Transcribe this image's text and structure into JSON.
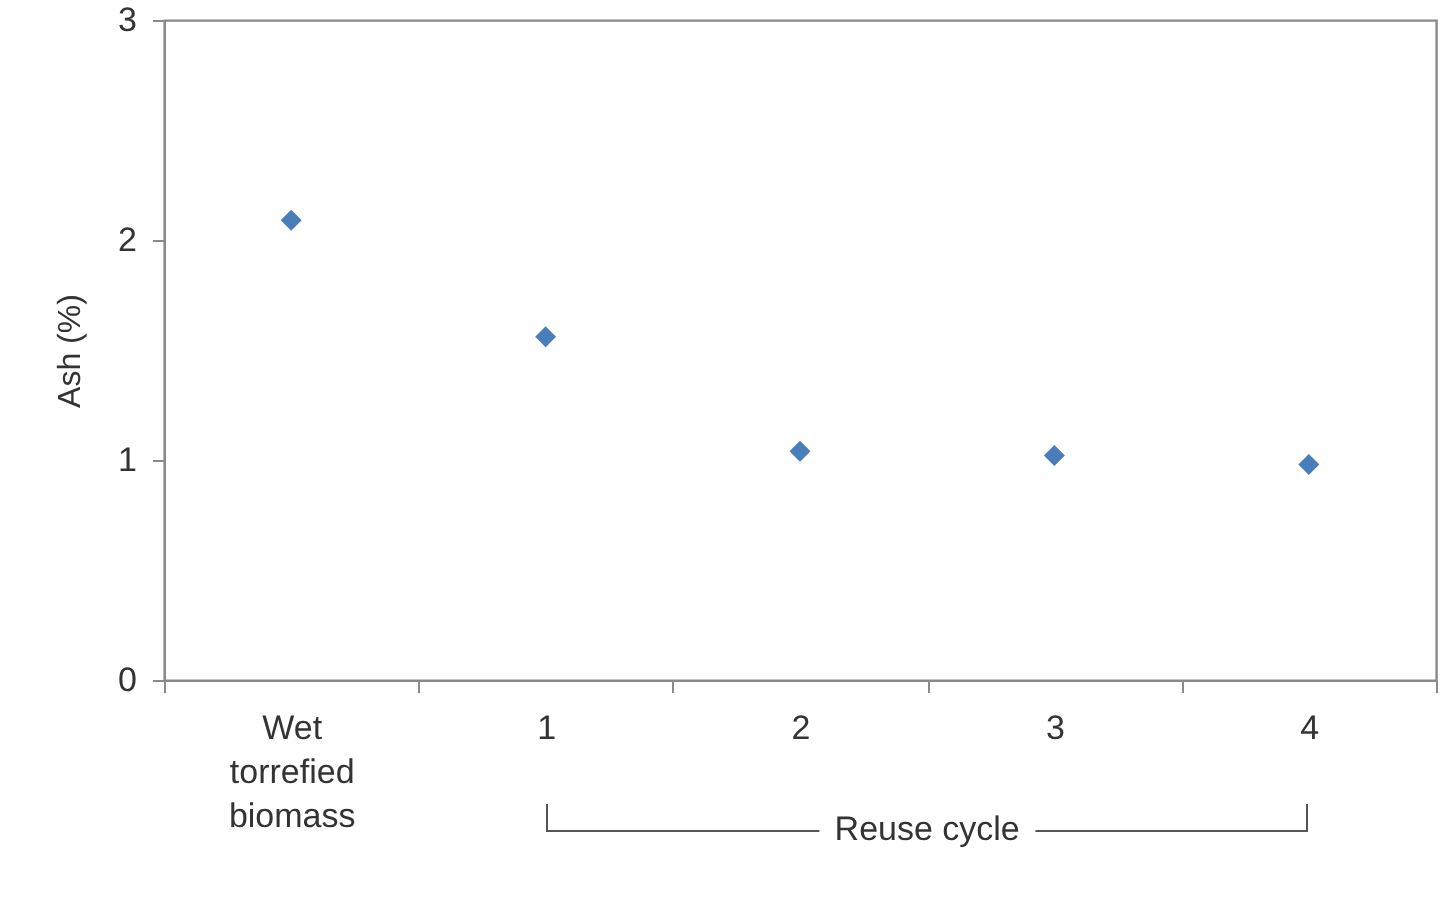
{
  "chart_data": {
    "type": "scatter",
    "ylabel": "Ash (%)",
    "categories": [
      "Wet torrefied biomass",
      "1",
      "2",
      "3",
      "4"
    ],
    "values": [
      2.09,
      1.56,
      1.04,
      1.02,
      0.98
    ],
    "color": "#4a7ebb",
    "marker": "diamond",
    "grid": false,
    "ylim": [
      0,
      3
    ],
    "yticks": [
      0,
      1,
      2,
      3
    ],
    "annotations": [
      "Reuse cycle"
    ]
  }
}
